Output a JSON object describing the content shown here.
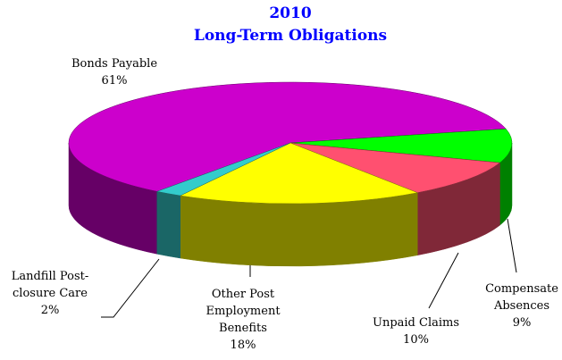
{
  "chart_data": {
    "type": "pie3d",
    "title": "2010",
    "subtitle": "Long-Term Obligations",
    "categories": [
      "Bonds Payable",
      "Compensate Absences",
      "Unpaid Claims",
      "Other Post Employment Benefits",
      "Landfill Post-closure Care"
    ],
    "values": [
      61,
      9,
      10,
      18,
      2
    ],
    "value_labels": [
      "61%",
      "9%",
      "10%",
      "18%",
      "2%"
    ],
    "colors": [
      "#cc00cc",
      "#00ff00",
      "#ff5070",
      "#ffff00",
      "#33cccc"
    ]
  }
}
